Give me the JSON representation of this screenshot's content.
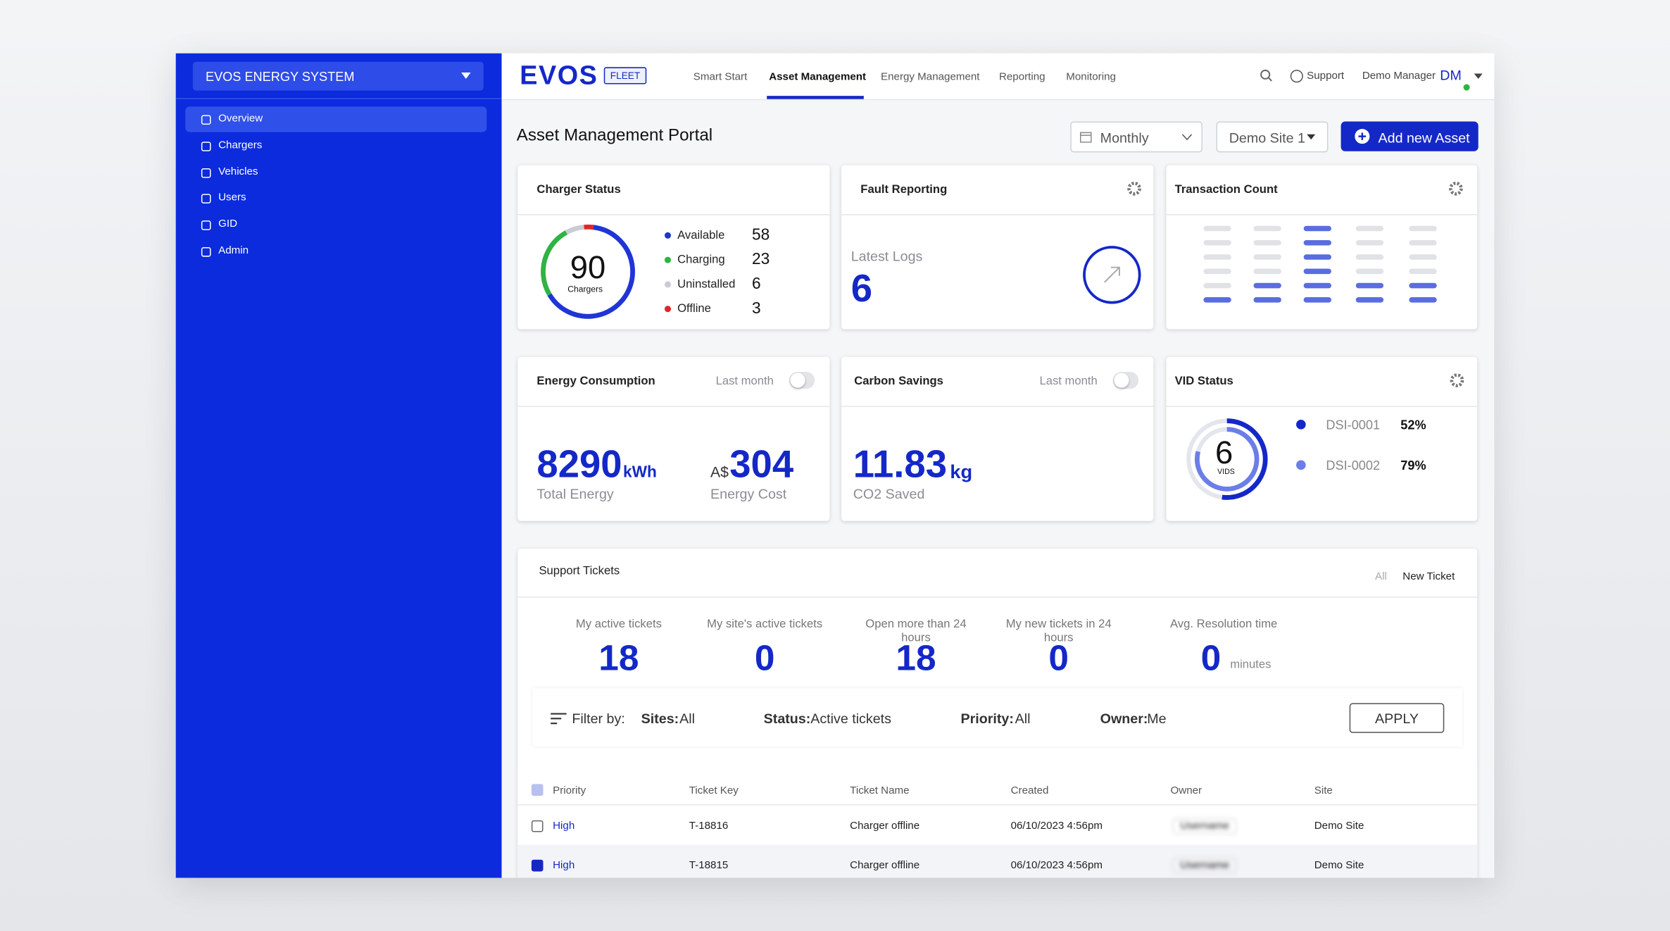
{
  "sidebar": {
    "org": "EVOS ENERGY SYSTEM",
    "nav": [
      "Overview",
      "Chargers",
      "Vehicles",
      "Users",
      "GID",
      "Admin"
    ]
  },
  "header": {
    "logo": "EVOS",
    "badge": "FLEET",
    "tabs": [
      "Smart Start",
      "Asset Management",
      "Energy Management",
      "Reporting",
      "Monitoring"
    ],
    "support": "Support",
    "user": "Demo Manager",
    "avatar": "DM"
  },
  "page": {
    "title": "Asset Management Portal",
    "period": "Monthly",
    "site": "Demo Site 1",
    "add_button": "Add new Asset"
  },
  "charger_status": {
    "title": "Charger Status",
    "total": 90,
    "total_label": "Chargers",
    "items": [
      {
        "label": "Available",
        "value": 58,
        "color": "#1f35d6"
      },
      {
        "label": "Charging",
        "value": 23,
        "color": "#2fb344"
      },
      {
        "label": "Uninstalled",
        "value": 6,
        "color": "#c9ccd3"
      },
      {
        "label": "Offline",
        "value": 3,
        "color": "#e0262c"
      }
    ]
  },
  "fault_reporting": {
    "title": "Fault Reporting",
    "subtitle": "Latest Logs",
    "value": 6
  },
  "transaction_count": {
    "title": "Transaction Count"
  },
  "energy": {
    "title": "Energy Consumption",
    "toggle": "Last month",
    "energy": 8290,
    "energy_unit": "kWh",
    "energy_label": "Total Energy",
    "cost_prefix": "A$",
    "cost": 304,
    "cost_label": "Energy Cost"
  },
  "carbon": {
    "title": "Carbon Savings",
    "toggle": "Last month",
    "value": 11.83,
    "unit": "kg",
    "label": "CO2 Saved"
  },
  "vid": {
    "title": "VID Status",
    "total": 6,
    "total_label": "VIDS",
    "items": [
      {
        "name": "DSI-0001",
        "value": 52,
        "value_label": "52%",
        "color": "#1428c8"
      },
      {
        "name": "DSI-0002",
        "value": 79,
        "value_label": "79%",
        "color": "#6b7ee8"
      }
    ]
  },
  "tickets": {
    "title": "Support Tickets",
    "tab_all": "All",
    "tab_new": "New Ticket",
    "stats": [
      {
        "label": "My active tickets",
        "value": 18
      },
      {
        "label": "My site's active tickets",
        "value": 0
      },
      {
        "label": "Open more than 24 hours",
        "value": 18
      },
      {
        "label": "My new tickets in 24 hours",
        "value": 0
      },
      {
        "label": "Avg. Resolution time",
        "value": 0,
        "unit": "minutes"
      }
    ],
    "filters": {
      "label": "Filter by:",
      "items": [
        {
          "key": "Sites:",
          "value": "All"
        },
        {
          "key": "Status:",
          "value": "Active tickets"
        },
        {
          "key": "Priority:",
          "value": "All"
        },
        {
          "key": "Owner:",
          "value": "Me"
        }
      ],
      "apply": "APPLY"
    },
    "columns": [
      "Priority",
      "Ticket Key",
      "Ticket Name",
      "Created",
      "Owner",
      "Site"
    ],
    "rows": [
      [
        "High",
        "T-18816",
        "Charger offline",
        "06/10/2023 4:56pm",
        "Username",
        "Demo Site"
      ],
      [
        "High",
        "T-18815",
        "Charger offline",
        "06/10/2023 4:56pm",
        "Username",
        "Demo Site"
      ]
    ]
  }
}
